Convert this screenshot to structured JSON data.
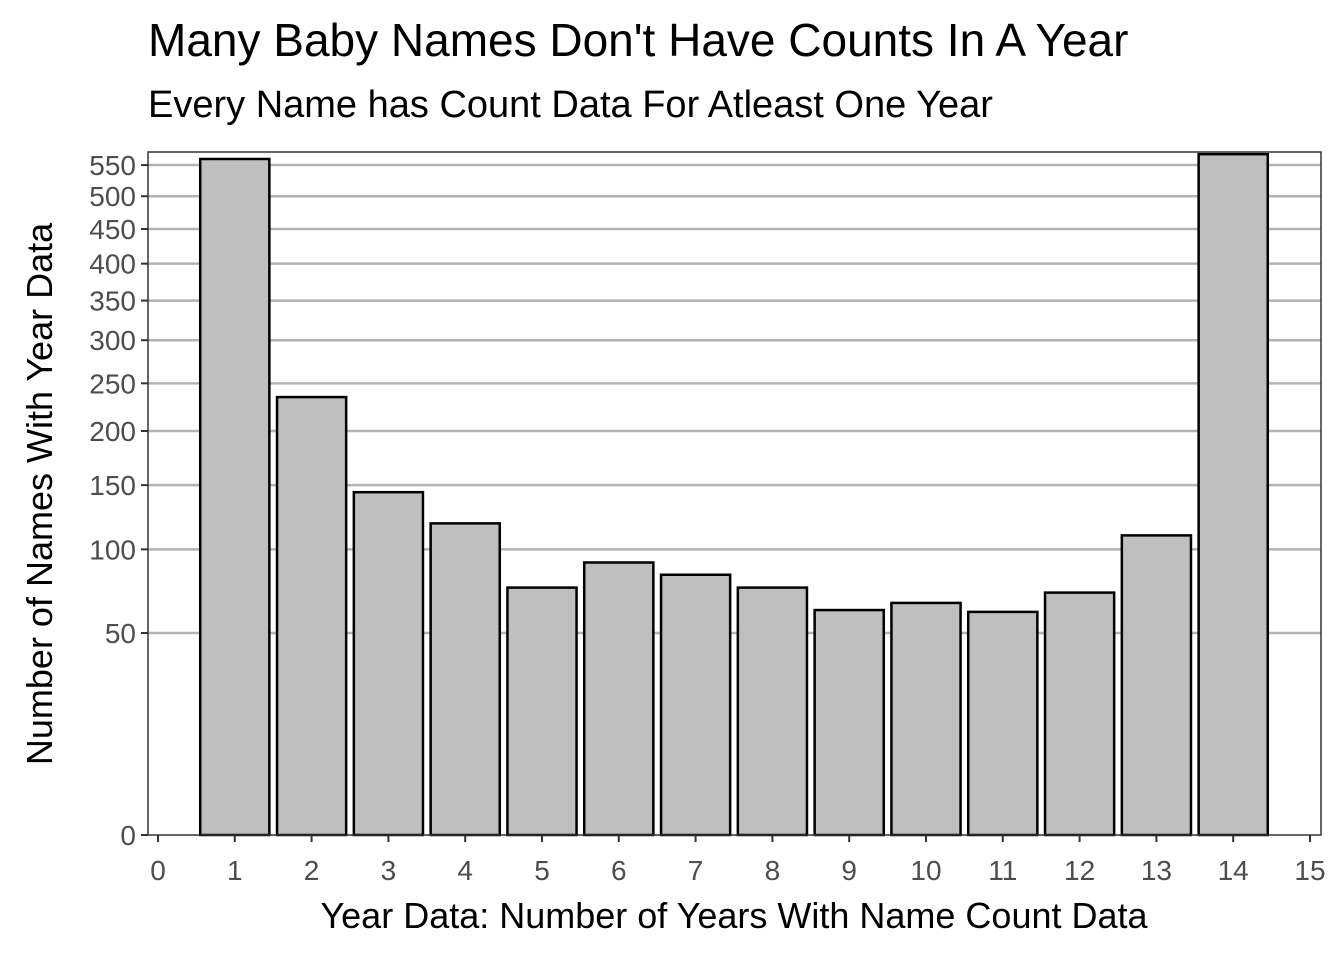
{
  "chart_data": {
    "type": "bar",
    "title": "Many Baby Names Don't Have Counts In A Year",
    "subtitle": "Every Name has Count Data For Atleast One Year",
    "xlabel": "Year Data: Number of Years With Name Count Data",
    "ylabel": "Number of Names With Year Data",
    "x_ticks": [
      0,
      1,
      2,
      3,
      4,
      5,
      6,
      7,
      8,
      9,
      10,
      11,
      12,
      13,
      14,
      15
    ],
    "xlim": [
      0,
      15
    ],
    "y_ticks": [
      0,
      50,
      100,
      150,
      200,
      250,
      300,
      350,
      400,
      450,
      500,
      550
    ],
    "y_scale": "sqrt",
    "ylim": [
      0,
      575
    ],
    "grid": "horizontal",
    "bar_fill": "#bfbfbf",
    "bar_edge": "#000000",
    "categories": [
      1,
      2,
      3,
      4,
      5,
      6,
      7,
      8,
      9,
      10,
      11,
      12,
      13,
      14
    ],
    "values": [
      560,
      235,
      144,
      119,
      75,
      91,
      83,
      75,
      62,
      66,
      61,
      72,
      110,
      568
    ]
  }
}
